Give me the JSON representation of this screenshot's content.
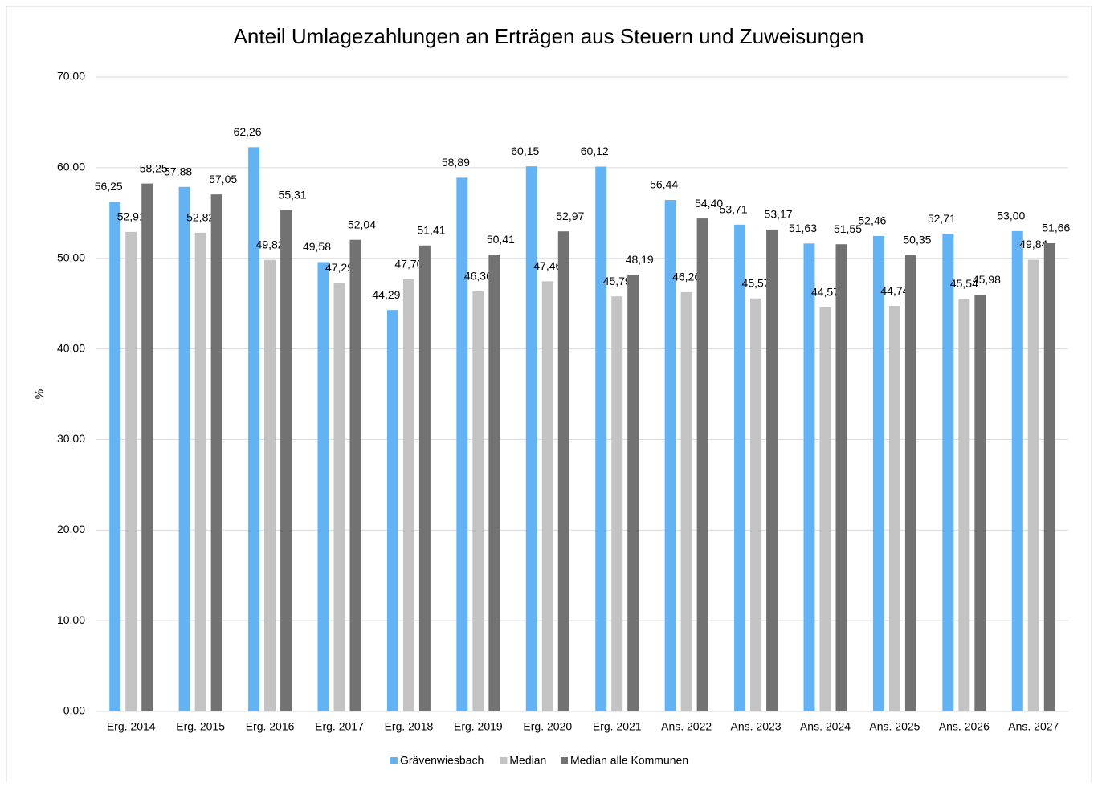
{
  "chart_data": {
    "type": "bar",
    "title": "Anteil Umlagezahlungen an Erträgen aus Steuern und Zuweisungen",
    "y_label": "%",
    "categories": [
      "Erg. 2014",
      "Erg. 2015",
      "Erg. 2016",
      "Erg. 2017",
      "Erg. 2018",
      "Erg. 2019",
      "Erg. 2020",
      "Erg. 2021",
      "Ans. 2022",
      "Ans. 2023",
      "Ans. 2024",
      "Ans. 2025",
      "Ans. 2026",
      "Ans. 2027"
    ],
    "series": [
      {
        "name": "Grävenwiesbach",
        "color": "#63b3f4",
        "values": [
          56.25,
          57.88,
          62.26,
          49.58,
          44.29,
          58.89,
          60.15,
          60.12,
          56.44,
          53.71,
          51.63,
          52.46,
          52.71,
          53.0
        ],
        "value_labels": [
          "56,25",
          "57,88",
          "62,26",
          "49,58",
          "44,29",
          "58,89",
          "60,15",
          "60,12",
          "56,44",
          "53,71",
          "51,63",
          "52,46",
          "52,71",
          "53,00"
        ]
      },
      {
        "name": "Median",
        "color": "#c3c3c3",
        "values": [
          52.91,
          52.82,
          49.82,
          47.29,
          47.7,
          46.36,
          47.46,
          45.79,
          46.26,
          45.57,
          44.57,
          44.74,
          45.54,
          49.84
        ],
        "value_labels": [
          "52,91",
          "52,82",
          "49,82",
          "47,29",
          "47,70",
          "46,36",
          "47,46",
          "45,79",
          "46,26",
          "45,57",
          "44,57",
          "44,74",
          "45,54",
          "49,84"
        ]
      },
      {
        "name": "Median alle Kommunen",
        "color": "#727272",
        "values": [
          58.25,
          57.05,
          55.31,
          52.04,
          51.41,
          50.41,
          52.97,
          48.19,
          54.4,
          53.17,
          51.55,
          50.35,
          45.98,
          51.66
        ],
        "value_labels": [
          "58,25",
          "57,05",
          "55,31",
          "52,04",
          "51,41",
          "50,41",
          "52,97",
          "48,19",
          "54,40",
          "53,17",
          "51,55",
          "50,35",
          "45,98",
          "51,66"
        ]
      }
    ],
    "ylim": [
      0,
      70
    ],
    "yticks": [
      {
        "value": 0,
        "label": "0,00"
      },
      {
        "value": 10,
        "label": "10,00"
      },
      {
        "value": 20,
        "label": "20,00"
      },
      {
        "value": 30,
        "label": "30,00"
      },
      {
        "value": 40,
        "label": "40,00"
      },
      {
        "value": 50,
        "label": "50,00"
      },
      {
        "value": 60,
        "label": "60,00"
      },
      {
        "value": 70,
        "label": "70,00"
      }
    ],
    "grid": true,
    "legend": "bottom"
  }
}
